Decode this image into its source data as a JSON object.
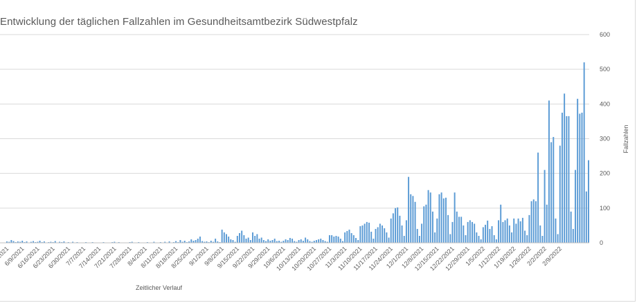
{
  "chart_data": {
    "type": "bar",
    "title": "Entwicklung der täglichen Fallzahlen im Gesundheitsamtbezirk Südwestpfalz",
    "xlabel": "Zeitlicher Verlauf",
    "ylabel": "Fallzahlen",
    "ylim": [
      0,
      600
    ],
    "yticks": [
      0,
      100,
      200,
      300,
      400,
      500,
      600
    ],
    "y_axis_side": "right",
    "grid": true,
    "bar_color": "#5b9bd5",
    "first_day": "6/2/2021",
    "xtick_labels": [
      "6/2/2021",
      "6/9/2021",
      "6/16/2021",
      "6/23/2021",
      "6/30/2021",
      "7/7/2021",
      "7/14/2021",
      "7/21/2021",
      "7/28/2021",
      "8/4/2021",
      "8/11/2021",
      "8/18/2021",
      "8/25/2021",
      "9/1/2021",
      "9/8/2021",
      "9/15/2021",
      "9/22/2021",
      "9/29/2021",
      "10/6/2021",
      "10/13/2021",
      "10/20/2021",
      "10/27/2021",
      "11/3/2021",
      "11/10/2021",
      "11/17/2021",
      "11/24/2021",
      "12/1/2021",
      "12/8/2021",
      "12/15/2021",
      "12/22/2021",
      "12/29/2021",
      "1/5/2022",
      "1/12/2022",
      "1/19/2022",
      "1/26/2022",
      "2/2/2022",
      "2/9/2022"
    ],
    "values": [
      4,
      3,
      8,
      5,
      2,
      4,
      3,
      6,
      2,
      4,
      1,
      3,
      5,
      2,
      3,
      6,
      2,
      4,
      1,
      2,
      3,
      2,
      5,
      1,
      3,
      2,
      4,
      1,
      2,
      1,
      3,
      1,
      2,
      0,
      1,
      1,
      2,
      0,
      1,
      2,
      1,
      0,
      1,
      0,
      2,
      1,
      0,
      1,
      2,
      3,
      1,
      2,
      0,
      1,
      0,
      1,
      2,
      3,
      1,
      0,
      2,
      1,
      0,
      1,
      2,
      0,
      1,
      3,
      1,
      0,
      2,
      1,
      3,
      0,
      4,
      1,
      2,
      5,
      2,
      8,
      3,
      6,
      2,
      4,
      10,
      6,
      8,
      12,
      18,
      5,
      3,
      4,
      2,
      6,
      3,
      12,
      4,
      2,
      38,
      30,
      25,
      18,
      10,
      8,
      3,
      20,
      28,
      35,
      22,
      12,
      15,
      8,
      30,
      20,
      25,
      12,
      15,
      8,
      5,
      10,
      6,
      8,
      12,
      5,
      6,
      3,
      6,
      10,
      8,
      14,
      12,
      5,
      3,
      8,
      10,
      6,
      15,
      10,
      5,
      3,
      6,
      8,
      10,
      12,
      8,
      5,
      3,
      22,
      22,
      18,
      20,
      18,
      12,
      5,
      30,
      34,
      38,
      28,
      22,
      14,
      8,
      48,
      50,
      55,
      60,
      58,
      32,
      12,
      40,
      45,
      55,
      50,
      42,
      30,
      15,
      70,
      85,
      100,
      102,
      78,
      50,
      20,
      65,
      190,
      140,
      135,
      118,
      40,
      20,
      55,
      105,
      110,
      152,
      145,
      90,
      30,
      70,
      140,
      145,
      128,
      130,
      80,
      25,
      60,
      145,
      90,
      75,
      75,
      50,
      22,
      60,
      65,
      60,
      55,
      30,
      20,
      10,
      45,
      52,
      64,
      40,
      48,
      22,
      10,
      65,
      110,
      60,
      65,
      70,
      50,
      30,
      70,
      55,
      70,
      62,
      72,
      35,
      22,
      80,
      120,
      125,
      120,
      260,
      50,
      20,
      210,
      110,
      410,
      290,
      305,
      70,
      25,
      280,
      375,
      430,
      365,
      365,
      90,
      40,
      210,
      415,
      372,
      375,
      520,
      148,
      238
    ]
  }
}
